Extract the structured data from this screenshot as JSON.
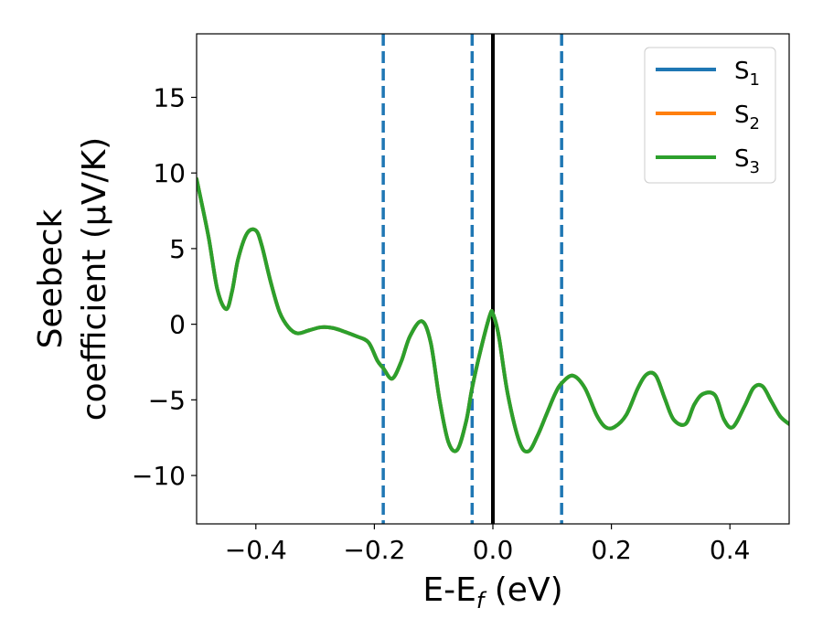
{
  "chart_data": {
    "type": "line",
    "xlabel_main": "E-E",
    "xlabel_sub": "f",
    "xlabel_unit": " (eV)",
    "ylabel_line1": "Seebeck",
    "ylabel_line2": "coefficient  (μV/K)",
    "xlim": [
      -0.5,
      0.5
    ],
    "ylim": [
      -13.2,
      19.2
    ],
    "xticks": [
      -0.4,
      -0.2,
      0.0,
      0.2,
      0.4
    ],
    "xtick_labels": [
      "−0.4",
      "−0.2",
      "0.0",
      "0.2",
      "0.4"
    ],
    "yticks": [
      -10,
      -5,
      0,
      5,
      10,
      15
    ],
    "ytick_labels": [
      "−10",
      "−5",
      "0",
      "5",
      "10",
      "15"
    ],
    "grid": false,
    "legend_position": "top-right",
    "vertical_lines": [
      {
        "x": -0.185,
        "style": "dashed",
        "color": "#1f77b4"
      },
      {
        "x": -0.035,
        "style": "dashed",
        "color": "#1f77b4"
      },
      {
        "x": 0.0,
        "style": "solid",
        "color": "#000000"
      },
      {
        "x": 0.116,
        "style": "dashed",
        "color": "#1f77b4"
      }
    ],
    "series": [
      {
        "name": "S",
        "sub": "1",
        "color": "#1f77b4"
      },
      {
        "name": "S",
        "sub": "2",
        "color": "#ff7f0e"
      },
      {
        "name": "S",
        "sub": "3",
        "color": "#2ca02c"
      }
    ],
    "x": [
      -0.5,
      -0.48,
      -0.465,
      -0.45,
      -0.44,
      -0.43,
      -0.415,
      -0.4,
      -0.39,
      -0.375,
      -0.36,
      -0.345,
      -0.33,
      -0.31,
      -0.29,
      -0.27,
      -0.25,
      -0.23,
      -0.21,
      -0.195,
      -0.185,
      -0.17,
      -0.155,
      -0.14,
      -0.12,
      -0.105,
      -0.09,
      -0.075,
      -0.06,
      -0.045,
      -0.035,
      -0.02,
      -0.005,
      0.0,
      0.01,
      0.025,
      0.045,
      0.06,
      0.075,
      0.09,
      0.105,
      0.116,
      0.135,
      0.155,
      0.175,
      0.19,
      0.205,
      0.225,
      0.245,
      0.26,
      0.275,
      0.29,
      0.305,
      0.325,
      0.34,
      0.355,
      0.375,
      0.39,
      0.405,
      0.425,
      0.44,
      0.455,
      0.47,
      0.485,
      0.5
    ],
    "y": [
      9.6,
      5.8,
      2.3,
      1.0,
      2.2,
      4.3,
      6.0,
      6.2,
      5.2,
      2.8,
      0.8,
      -0.2,
      -0.6,
      -0.4,
      -0.2,
      -0.25,
      -0.5,
      -0.8,
      -1.2,
      -2.4,
      -2.9,
      -3.6,
      -2.5,
      -0.8,
      0.2,
      -1.2,
      -5.0,
      -7.8,
      -8.3,
      -6.4,
      -4.2,
      -1.6,
      0.6,
      0.7,
      -0.8,
      -4.6,
      -7.8,
      -8.4,
      -7.4,
      -6.0,
      -4.6,
      -3.9,
      -3.4,
      -4.2,
      -6.0,
      -6.8,
      -6.8,
      -6.0,
      -4.2,
      -3.3,
      -3.4,
      -4.9,
      -6.3,
      -6.6,
      -5.3,
      -4.6,
      -4.7,
      -6.3,
      -6.8,
      -5.4,
      -4.2,
      -4.1,
      -5.1,
      -6.1,
      -6.6
    ]
  }
}
